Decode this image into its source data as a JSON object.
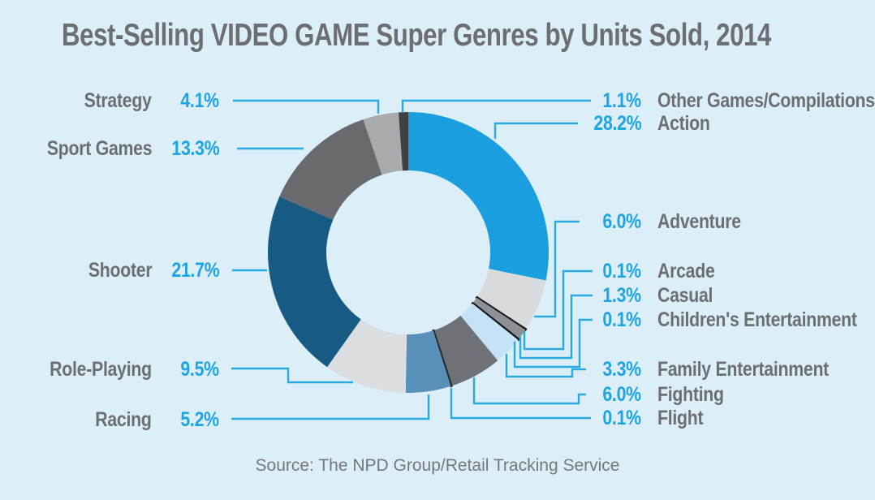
{
  "title": "Best-Selling VIDEO GAME Super Genres by Units Sold, 2014",
  "source": "Source: The NPD Group/Retail Tracking Service",
  "colors": {
    "background": "#DCEEF8",
    "title_text": "#6D6E71",
    "label_text": "#6D6E71",
    "accent_blue": "#1EA3E3",
    "leader_line": "#29ABE2",
    "source_text": "#76777A",
    "donut_hole": "#FFFFFF"
  },
  "chart_data": {
    "type": "pie",
    "subtype": "donut",
    "title": "Best-Selling VIDEO GAME Super Genres by Units Sold, 2014",
    "unit": "% of units sold",
    "year": "2014",
    "legend_position": "callout labels left and right of donut",
    "source": "Source: The NPD Group/Retail Tracking Service",
    "start_angle": "12 o'clock, clockwise",
    "slices": [
      {
        "id": "action",
        "label": "Action",
        "value": 28.2,
        "display": "28.2%",
        "color": "#1A9EE0"
      },
      {
        "id": "adventure",
        "label": "Adventure",
        "value": 6.0,
        "display": "6.0%",
        "color": "#D8DBDE"
      },
      {
        "id": "arcade",
        "label": "Arcade",
        "value": 0.1,
        "display": "0.1%",
        "color": "#1A1A1D"
      },
      {
        "id": "casual",
        "label": "Casual",
        "value": 1.3,
        "display": "1.3%",
        "color": "#8D9196"
      },
      {
        "id": "childrens-entertainment",
        "label": "Children's Entertainment",
        "value": 0.1,
        "display": "0.1%",
        "color": "#0D0D10"
      },
      {
        "id": "family-entertainment",
        "label": "Family Entertainment",
        "value": 3.3,
        "display": "3.3%",
        "color": "#C5E3F6"
      },
      {
        "id": "fighting",
        "label": "Fighting",
        "value": 6.0,
        "display": "6.0%",
        "color": "#6E7276"
      },
      {
        "id": "flight",
        "label": "Flight",
        "value": 0.1,
        "display": "0.1%",
        "color": "#2B2B2E"
      },
      {
        "id": "racing",
        "label": "Racing",
        "value": 5.2,
        "display": "5.2%",
        "color": "#5890B9"
      },
      {
        "id": "role-playing",
        "label": "Role-Playing",
        "value": 9.5,
        "display": "9.5%",
        "color": "#DBDEE1"
      },
      {
        "id": "shooter",
        "label": "Shooter",
        "value": 21.7,
        "display": "21.7%",
        "color": "#175A84"
      },
      {
        "id": "sport-games",
        "label": "Sport Games",
        "value": 13.3,
        "display": "13.3%",
        "color": "#696A6D"
      },
      {
        "id": "strategy",
        "label": "Strategy",
        "value": 4.1,
        "display": "4.1%",
        "color": "#A8AAAD"
      },
      {
        "id": "other-games-compilations",
        "label": "Other Games/Compilations",
        "value": 1.1,
        "display": "1.1%",
        "color": "#3F4043"
      }
    ]
  }
}
